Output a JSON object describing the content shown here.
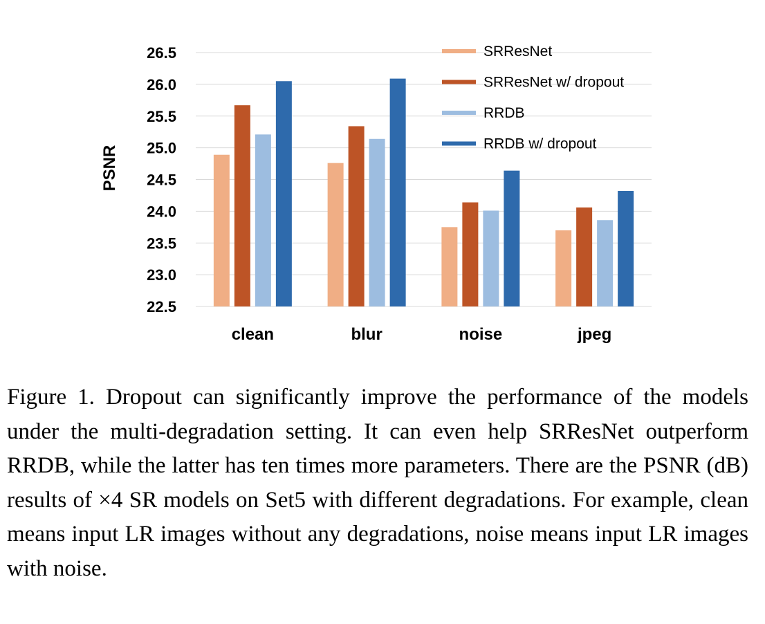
{
  "chart_data": {
    "type": "bar",
    "title": "",
    "xlabel": "",
    "ylabel": "PSNR",
    "ylim": [
      22.5,
      26.5
    ],
    "yticks": [
      "22.5",
      "23.0",
      "23.5",
      "24.0",
      "24.5",
      "25.0",
      "25.5",
      "26.0",
      "26.5"
    ],
    "grid": true,
    "legend_position": "top-right",
    "categories": [
      "clean",
      "blur",
      "noise",
      "jpeg"
    ],
    "series": [
      {
        "name": "SRResNet",
        "color": "#f0ae85",
        "values": [
          24.89,
          24.76,
          23.75,
          23.7
        ]
      },
      {
        "name": "SRResNet w/ dropout",
        "color": "#bd5426",
        "values": [
          25.67,
          25.34,
          24.14,
          24.06
        ]
      },
      {
        "name": "RRDB",
        "color": "#9dbde0",
        "values": [
          25.21,
          25.14,
          24.01,
          23.86
        ]
      },
      {
        "name": "RRDB w/ dropout",
        "color": "#2e6aac",
        "values": [
          26.05,
          26.09,
          24.64,
          24.32
        ]
      }
    ]
  },
  "caption": {
    "text": "Figure 1.  Dropout can significantly improve the performance of the models under the multi-degradation setting. It can even help SRResNet outperform RRDB, while the latter has ten times more parameters. There are the PSNR (dB) results of ×4 SR models on Set5 with different degradations. For example, clean means input LR images without any degradations, noise means input LR images with noise."
  }
}
